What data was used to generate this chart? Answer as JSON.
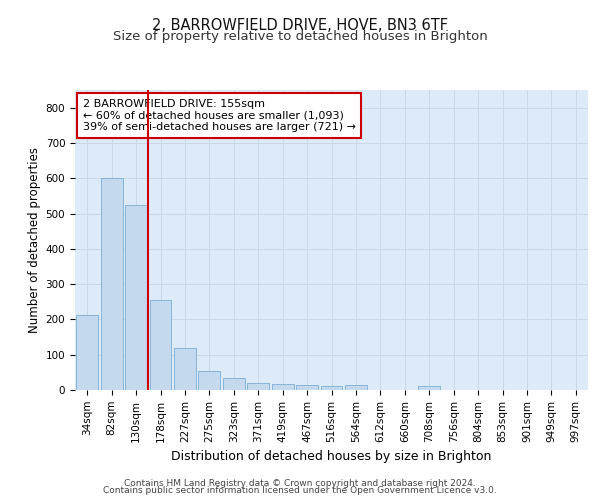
{
  "title_line1": "2, BARROWFIELD DRIVE, HOVE, BN3 6TF",
  "title_line2": "Size of property relative to detached houses in Brighton",
  "xlabel": "Distribution of detached houses by size in Brighton",
  "ylabel": "Number of detached properties",
  "bar_labels": [
    "34sqm",
    "82sqm",
    "130sqm",
    "178sqm",
    "227sqm",
    "275sqm",
    "323sqm",
    "371sqm",
    "419sqm",
    "467sqm",
    "516sqm",
    "564sqm",
    "612sqm",
    "660sqm",
    "708sqm",
    "756sqm",
    "804sqm",
    "853sqm",
    "901sqm",
    "949sqm",
    "997sqm"
  ],
  "bar_values": [
    213,
    600,
    525,
    255,
    118,
    55,
    33,
    20,
    18,
    15,
    10,
    13,
    0,
    0,
    10,
    0,
    0,
    0,
    0,
    0,
    0
  ],
  "bar_color": "#c5d9ee",
  "bar_edge_color": "#7aaed4",
  "grid_color": "#c8d8e8",
  "background_color": "#ddeaf7",
  "vline_color": "#cc0000",
  "vline_pos": 2.5,
  "annotation_line1": "2 BARROWFIELD DRIVE: 155sqm",
  "annotation_line2": "← 60% of detached houses are smaller (1,093)",
  "annotation_line3": "39% of semi-detached houses are larger (721) →",
  "annotation_box_color": "#ffffff",
  "annotation_box_edge": "#cc0000",
  "ylim": [
    0,
    850
  ],
  "yticks": [
    0,
    100,
    200,
    300,
    400,
    500,
    600,
    700,
    800
  ],
  "footer_line1": "Contains HM Land Registry data © Crown copyright and database right 2024.",
  "footer_line2": "Contains public sector information licensed under the Open Government Licence v3.0.",
  "title_fontsize": 10.5,
  "subtitle_fontsize": 9.5,
  "tick_fontsize": 7.5,
  "ylabel_fontsize": 8.5,
  "xlabel_fontsize": 9,
  "footer_fontsize": 6.5,
  "annotation_fontsize": 8
}
